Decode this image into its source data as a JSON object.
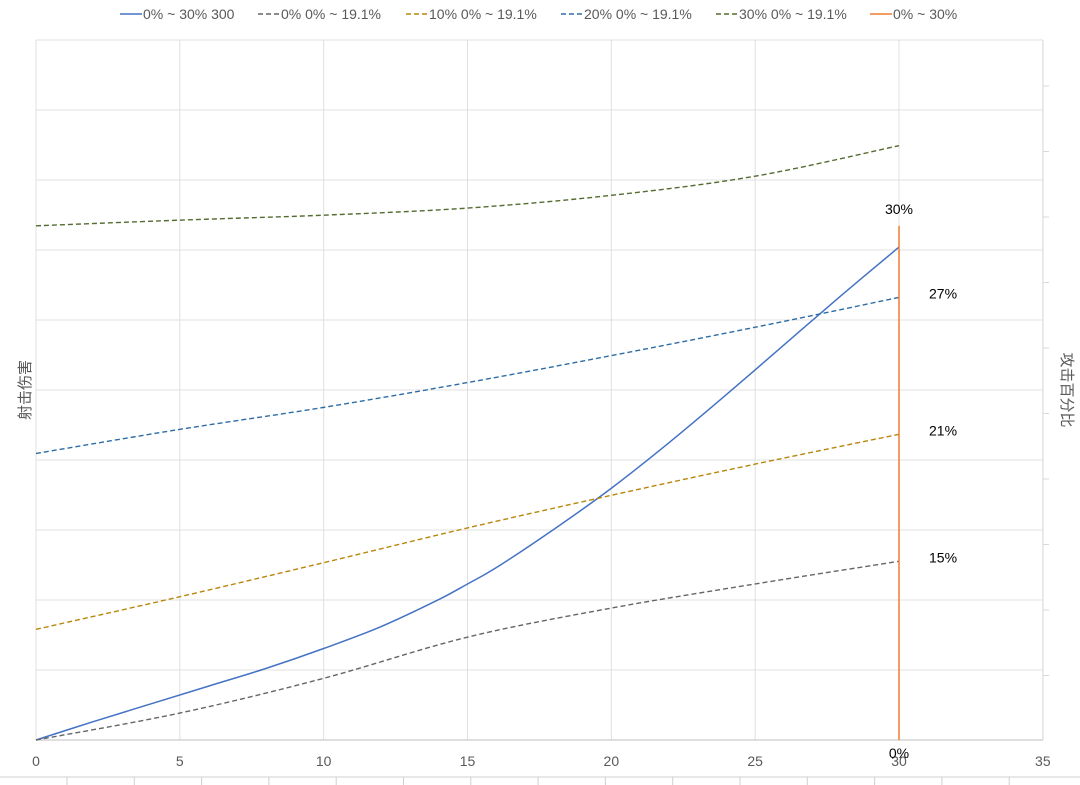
{
  "chart_data": {
    "type": "line",
    "ylabel": "射击伤害",
    "y2label": "攻击百分比",
    "xlim": [
      0,
      35
    ],
    "xticks": [
      "0",
      "5",
      "10",
      "15",
      "20",
      "25",
      "30",
      "35"
    ],
    "ylim": [
      0,
      1
    ],
    "grid": true,
    "legend_placement": "top",
    "series": [
      {
        "name": "0% ~ 30% 300",
        "color": "#4472c4",
        "dash": "solid",
        "axis": "y2",
        "x": [
          0,
          2,
          4,
          6,
          8,
          10,
          12,
          14,
          15,
          16,
          18,
          20,
          22,
          24,
          26,
          28,
          30
        ],
        "y": [
          0,
          2.6,
          5.1,
          7.6,
          10.1,
          12.9,
          16.0,
          19.8,
          22.0,
          24.3,
          29.7,
          35.5,
          41.9,
          48.7,
          55.7,
          62.7,
          69.5
        ]
      },
      {
        "name": "0% 0% ~ 19.1%",
        "color": "#666666",
        "dash": "dashed",
        "axis": "y2",
        "x": [
          0,
          5,
          10,
          15,
          20,
          25,
          30
        ],
        "y": [
          0,
          3.8,
          8.7,
          14.5,
          18.6,
          22.0,
          25.2
        ]
      },
      {
        "name": "10% 0% ~ 19.1%",
        "color": "#b8860b",
        "dash": "dashed",
        "axis": "y2",
        "x": [
          0,
          5,
          10,
          15,
          20,
          25,
          30
        ],
        "y": [
          15.6,
          20.2,
          25.0,
          29.9,
          34.5,
          38.9,
          43.1
        ]
      },
      {
        "name": "20% 0% ~ 19.1%",
        "color": "#2e6da4",
        "dash": "dashed",
        "axis": "y2",
        "x": [
          0,
          5,
          10,
          15,
          20,
          25,
          30
        ],
        "y": [
          40.4,
          43.8,
          46.9,
          50.4,
          54.2,
          58.2,
          62.4
        ]
      },
      {
        "name": "30% 0% ~ 19.1%",
        "color": "#556b2f",
        "dash": "dashed",
        "axis": "y2",
        "x": [
          0,
          5,
          10,
          15,
          20,
          25,
          30
        ],
        "y": [
          72.5,
          73.3,
          74.0,
          75.0,
          76.8,
          79.5,
          83.8
        ]
      },
      {
        "name": "0% ~ 30%",
        "color": "#ed7d31",
        "dash": "solid",
        "axis": "y2",
        "x": [
          30,
          30
        ],
        "y": [
          0,
          72.5
        ]
      }
    ],
    "annotations": [
      {
        "text": "30%",
        "x": 30,
        "y": 72.5,
        "anchor": "top"
      },
      {
        "text": "27%",
        "x": 30,
        "y": 62.4,
        "anchor": "right"
      },
      {
        "text": "21%",
        "x": 30,
        "y": 43.1,
        "anchor": "right"
      },
      {
        "text": "15%",
        "x": 30,
        "y": 25.2,
        "anchor": "right"
      },
      {
        "text": "0%",
        "x": 30,
        "y": 0,
        "anchor": "bottom"
      }
    ]
  }
}
